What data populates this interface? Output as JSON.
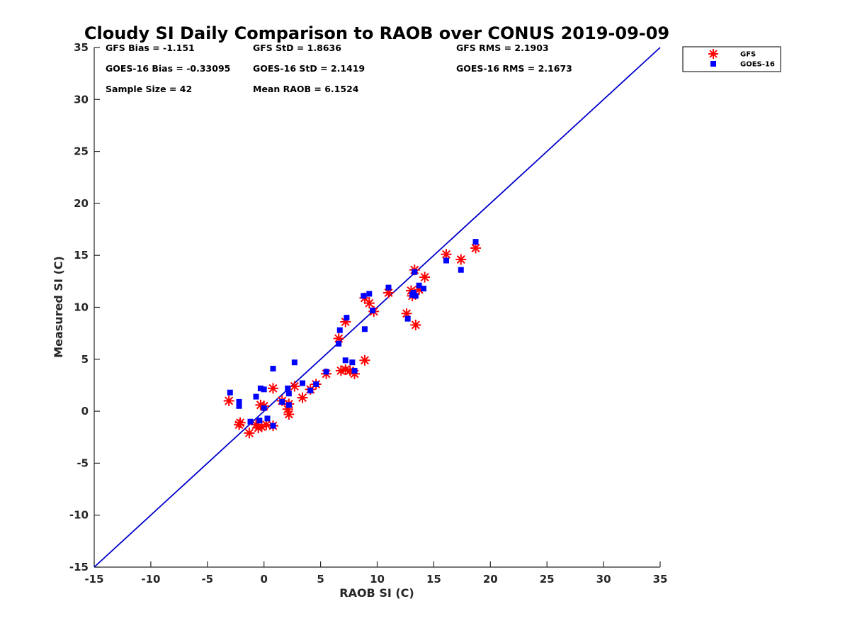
{
  "chart_data": {
    "type": "scatter",
    "title": "Cloudy SI Daily Comparison to RAOB over CONUS 2019-09-09",
    "xlabel": "RAOB SI (C)",
    "ylabel": "Measured SI (C)",
    "xlim": [
      -15,
      35
    ],
    "ylim": [
      -15,
      35
    ],
    "xticks": [
      -15,
      -10,
      -5,
      0,
      5,
      10,
      15,
      20,
      25,
      30,
      35
    ],
    "yticks": [
      -15,
      -10,
      -5,
      0,
      5,
      10,
      15,
      20,
      25,
      30,
      35
    ],
    "grid": false,
    "legend_position": "outside-top-right",
    "reference_line": {
      "from": [
        -15,
        -15
      ],
      "to": [
        35,
        35
      ],
      "color": "#0000cc"
    },
    "stats": [
      {
        "text": "GFS Bias = -1.151",
        "column": 0,
        "row": 0
      },
      {
        "text": "GFS StD = 1.8636",
        "column": 1,
        "row": 0
      },
      {
        "text": "GFS RMS = 2.1903",
        "column": 2,
        "row": 0
      },
      {
        "text": "GOES-16 Bias = -0.33095",
        "column": 0,
        "row": 1
      },
      {
        "text": "GOES-16 StD = 2.1419",
        "column": 1,
        "row": 1
      },
      {
        "text": "GOES-16 RMS = 2.1673",
        "column": 2,
        "row": 1
      },
      {
        "text": "Sample Size = 42",
        "column": 0,
        "row": 2
      },
      {
        "text": "Mean RAOB = 6.1524",
        "column": 1,
        "row": 2
      }
    ],
    "series": [
      {
        "name": "GFS",
        "marker": "asterisk",
        "color": "#ff0000",
        "points": [
          [
            -3.1,
            1.0
          ],
          [
            -2.1,
            -1.1
          ],
          [
            -2.2,
            -1.3
          ],
          [
            -1.3,
            -2.1
          ],
          [
            -0.7,
            -1.3
          ],
          [
            -0.5,
            -1.6
          ],
          [
            -0.3,
            0.6
          ],
          [
            -0.2,
            -1.5
          ],
          [
            0.0,
            0.5
          ],
          [
            0.2,
            -1.3
          ],
          [
            0.8,
            -1.4
          ],
          [
            0.8,
            2.2
          ],
          [
            1.6,
            1.0
          ],
          [
            2.1,
            0.2
          ],
          [
            2.2,
            -0.3
          ],
          [
            2.2,
            0.7
          ],
          [
            2.7,
            2.4
          ],
          [
            3.4,
            1.3
          ],
          [
            4.1,
            2.1
          ],
          [
            4.6,
            2.6
          ],
          [
            5.5,
            3.6
          ],
          [
            6.6,
            7.0
          ],
          [
            6.8,
            3.9
          ],
          [
            7.2,
            4.0
          ],
          [
            7.2,
            8.6
          ],
          [
            7.6,
            3.9
          ],
          [
            8.0,
            3.6
          ],
          [
            8.9,
            4.9
          ],
          [
            8.9,
            10.9
          ],
          [
            9.3,
            10.4
          ],
          [
            9.7,
            9.6
          ],
          [
            11.0,
            11.4
          ],
          [
            12.6,
            9.4
          ],
          [
            13.0,
            11.6
          ],
          [
            13.1,
            11.1
          ],
          [
            13.3,
            13.6
          ],
          [
            13.4,
            8.3
          ],
          [
            13.7,
            11.7
          ],
          [
            14.2,
            12.9
          ],
          [
            16.1,
            15.1
          ],
          [
            17.4,
            14.6
          ],
          [
            18.7,
            15.7
          ]
        ]
      },
      {
        "name": "GOES-16",
        "marker": "square",
        "color": "#0000ff",
        "points": [
          [
            -3.0,
            1.8
          ],
          [
            -2.2,
            0.9
          ],
          [
            -2.2,
            0.5
          ],
          [
            -1.2,
            -1.0
          ],
          [
            -0.7,
            1.4
          ],
          [
            -0.4,
            -0.9
          ],
          [
            -0.3,
            2.2
          ],
          [
            0.0,
            2.1
          ],
          [
            0.0,
            0.3
          ],
          [
            0.3,
            -0.7
          ],
          [
            0.8,
            4.1
          ],
          [
            0.8,
            -1.4
          ],
          [
            1.6,
            0.9
          ],
          [
            2.1,
            2.2
          ],
          [
            2.2,
            1.7
          ],
          [
            2.2,
            0.6
          ],
          [
            2.7,
            4.7
          ],
          [
            3.4,
            2.7
          ],
          [
            4.1,
            2.0
          ],
          [
            4.6,
            2.6
          ],
          [
            5.5,
            3.8
          ],
          [
            6.6,
            6.5
          ],
          [
            6.7,
            7.8
          ],
          [
            7.2,
            4.9
          ],
          [
            7.3,
            9.0
          ],
          [
            7.8,
            4.7
          ],
          [
            8.0,
            3.9
          ],
          [
            8.8,
            11.1
          ],
          [
            8.9,
            7.9
          ],
          [
            9.3,
            11.3
          ],
          [
            9.6,
            9.7
          ],
          [
            11.0,
            11.9
          ],
          [
            12.7,
            8.9
          ],
          [
            13.1,
            11.2
          ],
          [
            13.2,
            11.4
          ],
          [
            13.3,
            13.4
          ],
          [
            13.4,
            11.1
          ],
          [
            13.7,
            12.1
          ],
          [
            14.1,
            11.8
          ],
          [
            16.1,
            14.5
          ],
          [
            17.4,
            13.6
          ],
          [
            18.7,
            16.3
          ]
        ]
      }
    ]
  }
}
